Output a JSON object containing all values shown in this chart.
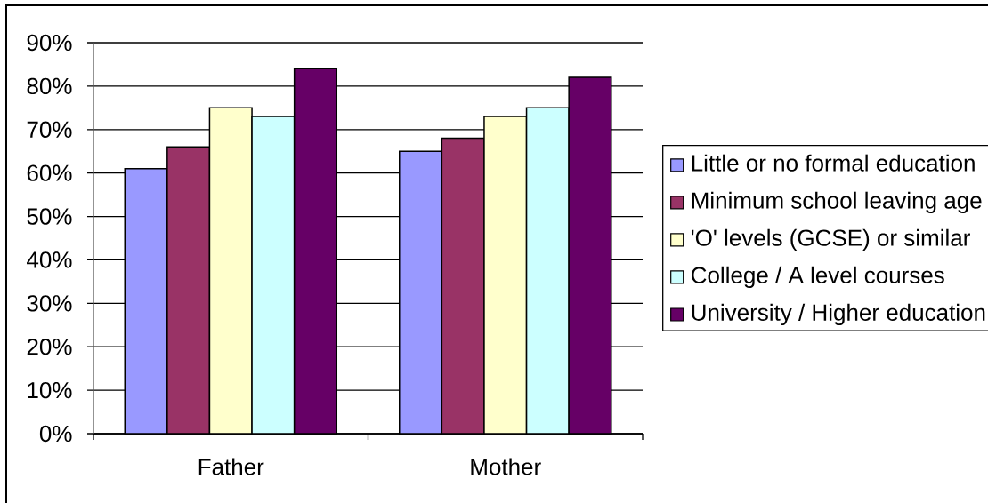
{
  "chart_data": {
    "type": "bar",
    "categories": [
      "Father",
      "Mother"
    ],
    "series": [
      {
        "name": "Little or no formal education",
        "color": "#9999ff",
        "values": [
          61,
          65
        ]
      },
      {
        "name": "Minimum school leaving age",
        "color": "#993366",
        "values": [
          66,
          68
        ]
      },
      {
        "name": "'O' levels (GCSE) or similar",
        "color": "#ffffcc",
        "values": [
          75,
          73
        ]
      },
      {
        "name": "College / A level courses",
        "color": "#ccffff",
        "values": [
          73,
          75
        ]
      },
      {
        "name": "University / Higher education",
        "color": "#660066",
        "values": [
          84,
          82
        ]
      }
    ],
    "ylim": [
      0,
      90
    ],
    "yticks": [
      {
        "value": 0,
        "label": "0%"
      },
      {
        "value": 10,
        "label": "10%"
      },
      {
        "value": 20,
        "label": "20%"
      },
      {
        "value": 30,
        "label": "30%"
      },
      {
        "value": 40,
        "label": "40%"
      },
      {
        "value": 50,
        "label": "50%"
      },
      {
        "value": 60,
        "label": "60%"
      },
      {
        "value": 70,
        "label": "70%"
      },
      {
        "value": 80,
        "label": "80%"
      },
      {
        "value": 90,
        "label": "90%"
      }
    ],
    "grid": "y",
    "legend": "right"
  }
}
